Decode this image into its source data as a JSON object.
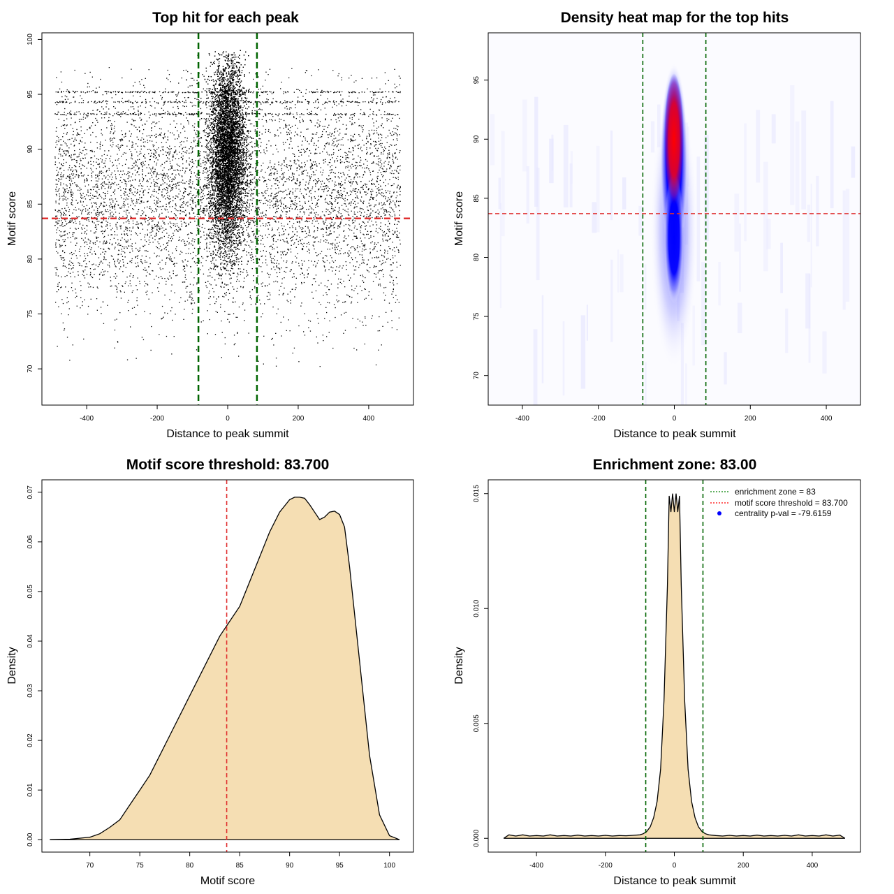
{
  "chart_data": [
    {
      "type": "scatter",
      "title": "Top hit for each peak",
      "xlabel": "Distance to peak summit",
      "ylabel": "Motif score",
      "xlim": [
        -527,
        527
      ],
      "ylim": [
        66.7,
        100.6
      ],
      "xticks": [
        -400,
        -200,
        0,
        200,
        400
      ],
      "xtick_labels": [
        "-400",
        "-200",
        "0",
        "200",
        "400"
      ],
      "yticks": [
        70,
        75,
        80,
        85,
        90,
        95,
        100
      ],
      "ytick_labels": [
        "70",
        "75",
        "80",
        "85",
        "90",
        "95",
        "100"
      ],
      "vlines": [
        -83,
        83
      ],
      "hline": 83.7,
      "colors": {
        "points": "#000000",
        "vlines": "#006400",
        "hline": "#e03030"
      },
      "grid": false,
      "approx_point_distribution": {
        "x_range": [
          -490,
          490
        ],
        "central_cluster": {
          "x_center": 0,
          "x_spread": 25,
          "y_range": [
            73,
            99
          ]
        },
        "background": {
          "y_range": [
            70,
            97.5
          ]
        }
      }
    },
    {
      "type": "heatmap",
      "title": "Density heat map for the top hits",
      "xlabel": "Distance to peak summit",
      "ylabel": "Motif score",
      "xlim": [
        -490,
        490
      ],
      "ylim": [
        67.5,
        99
      ],
      "xticks": [
        -400,
        -200,
        0,
        200,
        400
      ],
      "xtick_labels": [
        "-400",
        "-200",
        "0",
        "200",
        "400"
      ],
      "yticks": [
        70,
        75,
        80,
        85,
        90,
        95
      ],
      "ytick_labels": [
        "70",
        "75",
        "80",
        "85",
        "90",
        "95"
      ],
      "vlines": [
        -83,
        83
      ],
      "hline": 83.7,
      "color_scale": [
        "#ffffff",
        "#0000ff",
        "#ff0000"
      ],
      "colors": {
        "vlines": "#006400",
        "hline": "#e03030"
      },
      "hotspot": {
        "x": 0,
        "y_peak": 91,
        "y_range": [
          72,
          98
        ]
      }
    },
    {
      "type": "area",
      "title": "Motif score threshold: 83.700",
      "xlabel": "Motif score",
      "ylabel": "Density",
      "xlim": [
        65.2,
        102.4
      ],
      "ylim": [
        -0.0025,
        0.0725
      ],
      "xticks": [
        70,
        75,
        80,
        85,
        90,
        95,
        100
      ],
      "xtick_labels": [
        "70",
        "75",
        "80",
        "85",
        "90",
        "95",
        "100"
      ],
      "yticks": [
        0,
        0.01,
        0.02,
        0.03,
        0.04,
        0.05,
        0.06,
        0.07
      ],
      "ytick_labels": [
        "0.00",
        "0.01",
        "0.02",
        "0.03",
        "0.04",
        "0.05",
        "0.06",
        "0.07"
      ],
      "vline": 83.7,
      "colors": {
        "fill": "#f5deb3",
        "line": "#000000",
        "vline": "#e03030"
      },
      "x": [
        66,
        68,
        70,
        71,
        72,
        73,
        74,
        75,
        76,
        77,
        78,
        79,
        80,
        81,
        82,
        83,
        84,
        85,
        86,
        87,
        88,
        89,
        90,
        90.5,
        91,
        91.5,
        92,
        92.5,
        93,
        93.5,
        94,
        94.5,
        95,
        95.5,
        96,
        97,
        98,
        99,
        100,
        101
      ],
      "y": [
        0.0,
        0.0001,
        0.0005,
        0.0012,
        0.0025,
        0.004,
        0.007,
        0.01,
        0.013,
        0.017,
        0.021,
        0.025,
        0.029,
        0.033,
        0.037,
        0.041,
        0.044,
        0.047,
        0.052,
        0.057,
        0.062,
        0.066,
        0.0685,
        0.069,
        0.069,
        0.0688,
        0.0675,
        0.066,
        0.0645,
        0.065,
        0.066,
        0.0662,
        0.0655,
        0.063,
        0.055,
        0.036,
        0.017,
        0.005,
        0.0008,
        0.0
      ],
      "grid": false
    },
    {
      "type": "area",
      "title": "Enrichment zone: 83.00",
      "xlabel": "Distance to peak summit",
      "ylabel": "Density",
      "xlim": [
        -540,
        540
      ],
      "ylim": [
        -0.0006,
        0.0156
      ],
      "xticks": [
        -400,
        -200,
        0,
        200,
        400
      ],
      "xtick_labels": [
        "-400",
        "-200",
        "0",
        "200",
        "400"
      ],
      "yticks": [
        0,
        0.005,
        0.01,
        0.015
      ],
      "ytick_labels": [
        "0.000",
        "0.005",
        "0.010",
        "0.015"
      ],
      "vlines": [
        -83,
        83
      ],
      "colors": {
        "fill": "#f5deb3",
        "line": "#000000",
        "vlines": "#006400"
      },
      "x": [
        -495,
        -480,
        -460,
        -440,
        -420,
        -400,
        -380,
        -360,
        -340,
        -320,
        -300,
        -280,
        -260,
        -240,
        -220,
        -200,
        -180,
        -160,
        -140,
        -120,
        -100,
        -90,
        -80,
        -70,
        -60,
        -50,
        -40,
        -30,
        -20,
        -15,
        -10,
        -5,
        0,
        5,
        10,
        15,
        20,
        30,
        40,
        50,
        60,
        70,
        80,
        90,
        100,
        120,
        140,
        160,
        180,
        200,
        220,
        240,
        260,
        280,
        300,
        320,
        340,
        360,
        380,
        400,
        420,
        440,
        460,
        480,
        495
      ],
      "y": [
        0.0,
        0.00015,
        0.0001,
        0.00015,
        0.0001,
        0.00012,
        0.0001,
        0.00015,
        0.0001,
        0.00012,
        0.0001,
        0.00014,
        0.0001,
        0.00012,
        0.0001,
        0.00013,
        0.0001,
        0.00012,
        0.00011,
        0.00013,
        0.00015,
        0.0002,
        0.0003,
        0.0005,
        0.0009,
        0.0016,
        0.003,
        0.006,
        0.011,
        0.0149,
        0.0142,
        0.015,
        0.0142,
        0.015,
        0.0142,
        0.0149,
        0.011,
        0.006,
        0.003,
        0.0016,
        0.0009,
        0.0005,
        0.0003,
        0.0002,
        0.00015,
        0.00012,
        0.0001,
        0.00013,
        0.0001,
        0.00012,
        0.0001,
        0.00014,
        0.0001,
        0.00012,
        0.0001,
        0.00013,
        0.0001,
        0.00015,
        0.0001,
        0.00012,
        0.0001,
        0.00015,
        0.0001,
        0.00014,
        0.0
      ],
      "legend": {
        "placement": "top-right",
        "items": [
          {
            "label": "enrichment zone = 83",
            "style": "dotted",
            "color": "#008000"
          },
          {
            "label": "motif score threshold = 83.700",
            "style": "dotted",
            "color": "#ff0000"
          },
          {
            "label": "centrality p-val = -79.6159",
            "style": "point",
            "color": "#0000ff"
          }
        ]
      },
      "grid": false
    }
  ]
}
